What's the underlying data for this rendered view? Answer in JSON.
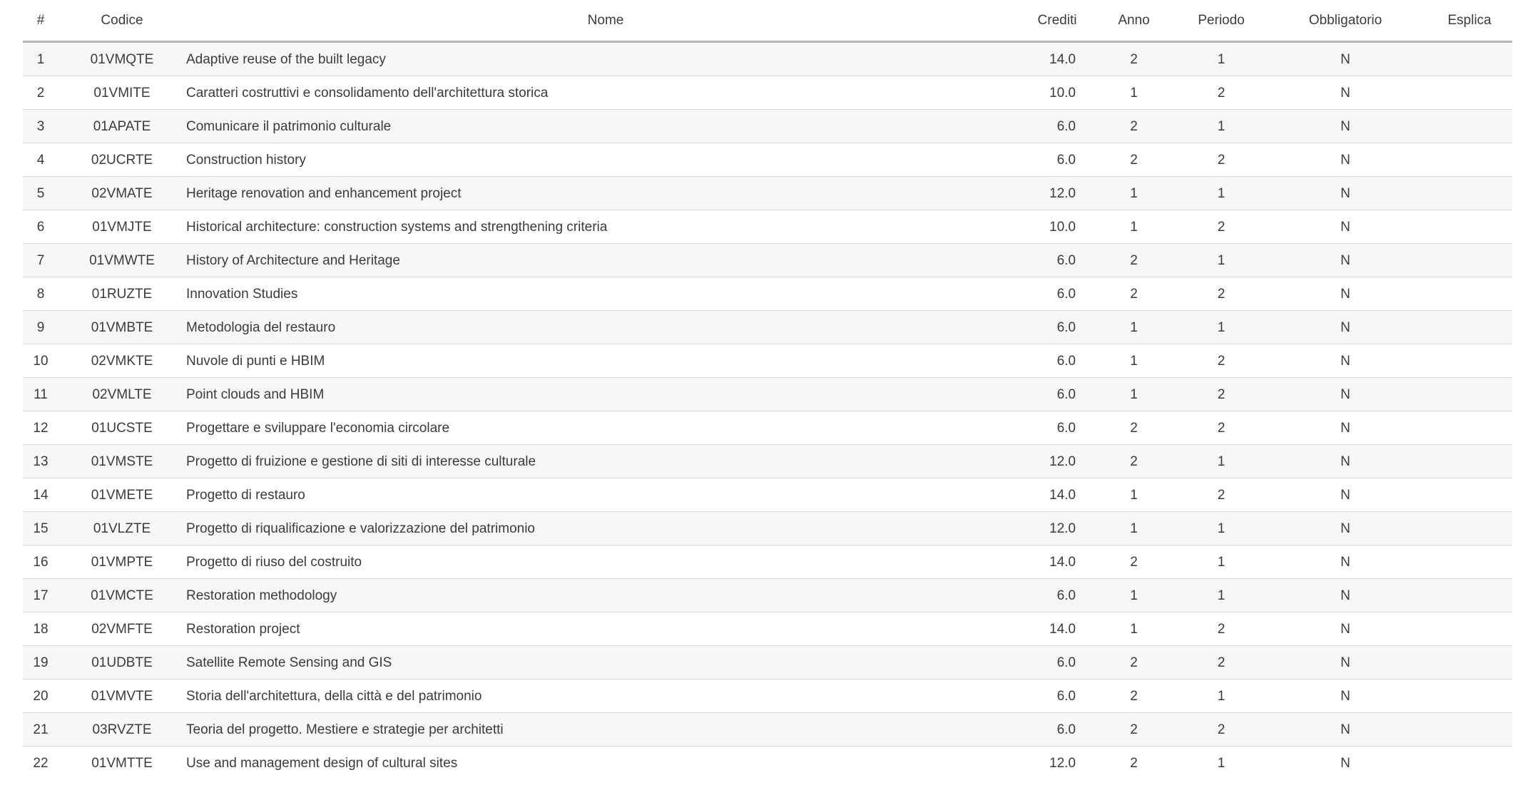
{
  "colors": {
    "page_background": "#ffffff",
    "stripe_row": "#f7f7f7",
    "row_separator": "#d9d9d9",
    "header_rule": "#b3b3b3",
    "text": "#3b3b3b"
  },
  "table": {
    "columns": [
      {
        "key": "num",
        "label": "#"
      },
      {
        "key": "codice",
        "label": "Codice"
      },
      {
        "key": "nome",
        "label": "Nome"
      },
      {
        "key": "crediti",
        "label": "Crediti"
      },
      {
        "key": "anno",
        "label": "Anno"
      },
      {
        "key": "periodo",
        "label": "Periodo"
      },
      {
        "key": "obbligatorio",
        "label": "Obbligatorio"
      },
      {
        "key": "esplica",
        "label": "Esplica"
      }
    ],
    "rows": [
      {
        "num": "1",
        "codice": "01VMQTE",
        "nome": "Adaptive reuse of the built legacy",
        "crediti": "14.0",
        "anno": "2",
        "periodo": "1",
        "obbligatorio": "N",
        "esplica": ""
      },
      {
        "num": "2",
        "codice": "01VMITE",
        "nome": "Caratteri costruttivi e consolidamento dell'architettura storica",
        "crediti": "10.0",
        "anno": "1",
        "periodo": "2",
        "obbligatorio": "N",
        "esplica": ""
      },
      {
        "num": "3",
        "codice": "01APATE",
        "nome": "Comunicare il patrimonio culturale",
        "crediti": "6.0",
        "anno": "2",
        "periodo": "1",
        "obbligatorio": "N",
        "esplica": ""
      },
      {
        "num": "4",
        "codice": "02UCRTE",
        "nome": "Construction history",
        "crediti": "6.0",
        "anno": "2",
        "periodo": "2",
        "obbligatorio": "N",
        "esplica": ""
      },
      {
        "num": "5",
        "codice": "02VMATE",
        "nome": "Heritage renovation and enhancement project",
        "crediti": "12.0",
        "anno": "1",
        "periodo": "1",
        "obbligatorio": "N",
        "esplica": ""
      },
      {
        "num": "6",
        "codice": "01VMJTE",
        "nome": "Historical architecture: construction systems and strengthening criteria",
        "crediti": "10.0",
        "anno": "1",
        "periodo": "2",
        "obbligatorio": "N",
        "esplica": ""
      },
      {
        "num": "7",
        "codice": "01VMWTE",
        "nome": "History of Architecture and Heritage",
        "crediti": "6.0",
        "anno": "2",
        "periodo": "1",
        "obbligatorio": "N",
        "esplica": ""
      },
      {
        "num": "8",
        "codice": "01RUZTE",
        "nome": "Innovation Studies",
        "crediti": "6.0",
        "anno": "2",
        "periodo": "2",
        "obbligatorio": "N",
        "esplica": ""
      },
      {
        "num": "9",
        "codice": "01VMBTE",
        "nome": "Metodologia del restauro",
        "crediti": "6.0",
        "anno": "1",
        "periodo": "1",
        "obbligatorio": "N",
        "esplica": ""
      },
      {
        "num": "10",
        "codice": "02VMKTE",
        "nome": "Nuvole di punti e HBIM",
        "crediti": "6.0",
        "anno": "1",
        "periodo": "2",
        "obbligatorio": "N",
        "esplica": ""
      },
      {
        "num": "11",
        "codice": "02VMLTE",
        "nome": "Point clouds and HBIM",
        "crediti": "6.0",
        "anno": "1",
        "periodo": "2",
        "obbligatorio": "N",
        "esplica": ""
      },
      {
        "num": "12",
        "codice": "01UCSTE",
        "nome": "Progettare e sviluppare l'economia circolare",
        "crediti": "6.0",
        "anno": "2",
        "periodo": "2",
        "obbligatorio": "N",
        "esplica": ""
      },
      {
        "num": "13",
        "codice": "01VMSTE",
        "nome": "Progetto di fruizione e gestione di siti di interesse culturale",
        "crediti": "12.0",
        "anno": "2",
        "periodo": "1",
        "obbligatorio": "N",
        "esplica": ""
      },
      {
        "num": "14",
        "codice": "01VMETE",
        "nome": "Progetto di restauro",
        "crediti": "14.0",
        "anno": "1",
        "periodo": "2",
        "obbligatorio": "N",
        "esplica": ""
      },
      {
        "num": "15",
        "codice": "01VLZTE",
        "nome": "Progetto di riqualificazione e valorizzazione del patrimonio",
        "crediti": "12.0",
        "anno": "1",
        "periodo": "1",
        "obbligatorio": "N",
        "esplica": ""
      },
      {
        "num": "16",
        "codice": "01VMPTE",
        "nome": "Progetto di riuso del costruito",
        "crediti": "14.0",
        "anno": "2",
        "periodo": "1",
        "obbligatorio": "N",
        "esplica": ""
      },
      {
        "num": "17",
        "codice": "01VMCTE",
        "nome": "Restoration methodology",
        "crediti": "6.0",
        "anno": "1",
        "periodo": "1",
        "obbligatorio": "N",
        "esplica": ""
      },
      {
        "num": "18",
        "codice": "02VMFTE",
        "nome": "Restoration project",
        "crediti": "14.0",
        "anno": "1",
        "periodo": "2",
        "obbligatorio": "N",
        "esplica": ""
      },
      {
        "num": "19",
        "codice": "01UDBTE",
        "nome": "Satellite Remote Sensing and GIS",
        "crediti": "6.0",
        "anno": "2",
        "periodo": "2",
        "obbligatorio": "N",
        "esplica": ""
      },
      {
        "num": "20",
        "codice": "01VMVTE",
        "nome": "Storia dell'architettura, della città e del patrimonio",
        "crediti": "6.0",
        "anno": "2",
        "periodo": "1",
        "obbligatorio": "N",
        "esplica": ""
      },
      {
        "num": "21",
        "codice": "03RVZTE",
        "nome": "Teoria del progetto. Mestiere e strategie per architetti",
        "crediti": "6.0",
        "anno": "2",
        "periodo": "2",
        "obbligatorio": "N",
        "esplica": ""
      },
      {
        "num": "22",
        "codice": "01VMTTE",
        "nome": "Use and management design of cultural sites",
        "crediti": "12.0",
        "anno": "2",
        "periodo": "1",
        "obbligatorio": "N",
        "esplica": ""
      }
    ]
  }
}
